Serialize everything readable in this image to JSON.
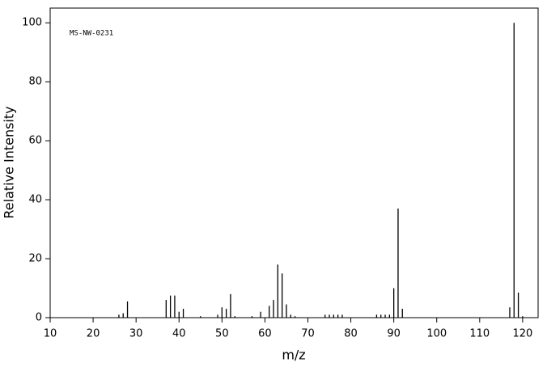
{
  "chart_data": {
    "type": "stem",
    "annotation": "MS-NW-0231",
    "xlabel": "m/z",
    "ylabel": "Relative Intensity",
    "color": "#000000",
    "x": [
      26,
      27,
      28,
      37,
      38,
      39,
      40,
      41,
      45,
      49,
      50,
      51,
      52,
      53,
      57,
      59,
      61,
      62,
      63,
      64,
      65,
      66,
      67,
      74,
      75,
      76,
      77,
      78,
      86,
      87,
      88,
      89,
      90,
      91,
      92,
      117,
      118,
      119,
      120
    ],
    "values": [
      1,
      1.5,
      5.5,
      6,
      7.5,
      7.5,
      2,
      3,
      0.5,
      1,
      3.5,
      3,
      8,
      0.5,
      0.5,
      2,
      4,
      6,
      18,
      15,
      4.5,
      1,
      0.5,
      1,
      1,
      1,
      1,
      1,
      1,
      1,
      1,
      1,
      10,
      37,
      3,
      3.5,
      100,
      8.5,
      0.5
    ],
    "xlim": [
      10,
      123.6
    ],
    "ylim": [
      0,
      105
    ],
    "xticks": [
      10,
      20,
      30,
      40,
      50,
      60,
      70,
      80,
      90,
      100,
      110,
      120
    ],
    "yticks": [
      0,
      20,
      40,
      60,
      80,
      100
    ]
  }
}
